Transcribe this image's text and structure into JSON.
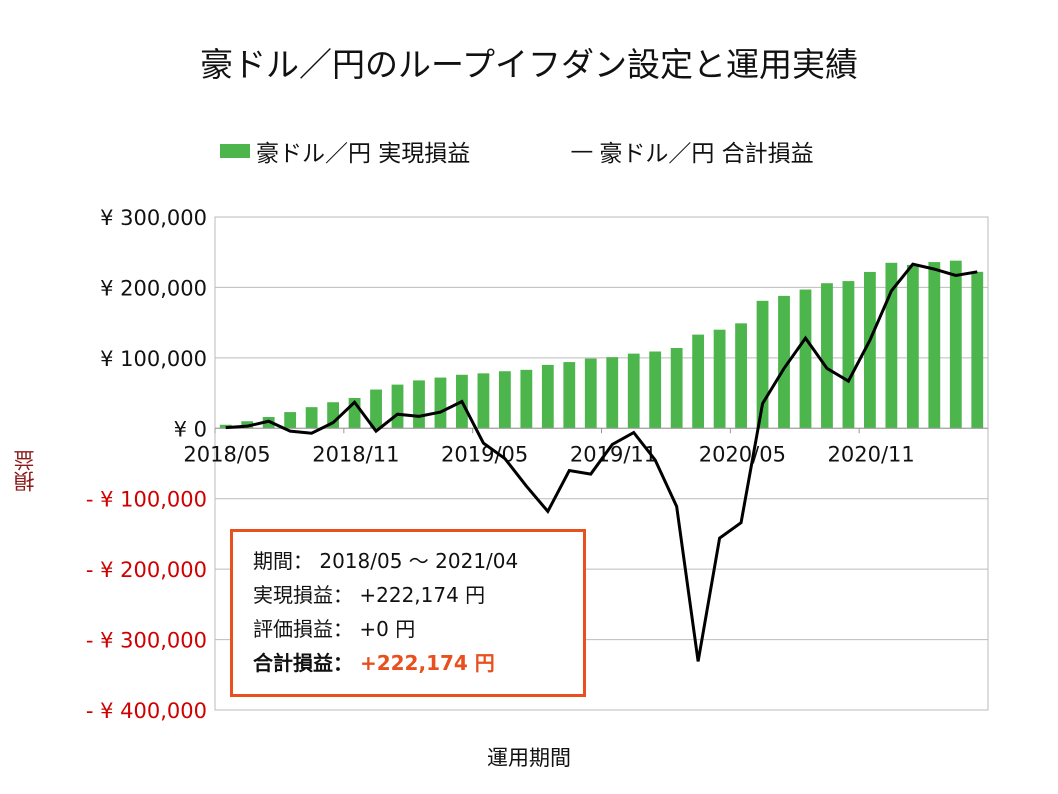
{
  "chart_data": {
    "type": "bar+line",
    "title": "豪ドル／円のループイフダン設定と運用実績",
    "xlabel": "運用期間",
    "ylabel": "損益",
    "ylim": [
      -400000,
      300000
    ],
    "yticks": [
      300000,
      200000,
      100000,
      0,
      -100000,
      -200000,
      -300000,
      -400000
    ],
    "ytick_labels": [
      "¥ 300,000",
      "¥ 200,000",
      "¥ 100,000",
      "¥ 0",
      "- ¥ 100,000",
      "- ¥ 200,000",
      "- ¥ 300,000",
      "- ¥ 400,000"
    ],
    "xtick_labels": [
      "2018/05",
      "2018/11",
      "2019/05",
      "2019/11",
      "2020/05",
      "2020/11"
    ],
    "grid": true,
    "legend": "top",
    "categories": [
      "2018/05",
      "2018/06",
      "2018/07",
      "2018/08",
      "2018/09",
      "2018/10",
      "2018/11",
      "2018/12",
      "2019/01",
      "2019/02",
      "2019/03",
      "2019/04",
      "2019/05",
      "2019/06",
      "2019/07",
      "2019/08",
      "2019/09",
      "2019/10",
      "2019/11",
      "2019/12",
      "2020/01",
      "2020/02",
      "2020/03",
      "2020/04",
      "2020/05",
      "2020/06",
      "2020/07",
      "2020/08",
      "2020/09",
      "2020/10",
      "2020/11",
      "2020/12",
      "2021/01",
      "2021/02",
      "2021/03",
      "2021/04"
    ],
    "series": [
      {
        "name": "豪ドル／円 実現損益",
        "type": "bar",
        "color": "#4cb54c",
        "values": [
          5000,
          10000,
          16000,
          23000,
          30000,
          37000,
          43000,
          55000,
          62000,
          68000,
          72000,
          76000,
          78000,
          81000,
          83000,
          90000,
          94000,
          99000,
          101000,
          106000,
          109000,
          114000,
          133000,
          140000,
          149000,
          181000,
          188000,
          197000,
          206000,
          209000,
          222000,
          235000,
          232000,
          236000,
          238000,
          222174
        ]
      },
      {
        "name": "豪ドル／円 合計損益",
        "type": "line",
        "color": "#000000",
        "values": [
          1000,
          3000,
          10000,
          -4000,
          -7000,
          8000,
          37000,
          -4000,
          20000,
          17000,
          23000,
          38000,
          -21000,
          -43000,
          -82000,
          -118000,
          -60000,
          -65000,
          -23000,
          -6000,
          -45000,
          -111000,
          -331000,
          -156000,
          -134000,
          35000,
          85000,
          128000,
          85000,
          67000,
          125000,
          195000,
          233000,
          226000,
          217000,
          222174
        ]
      }
    ],
    "colors": {
      "positive_tick": "#111111",
      "negative_tick": "#d00000",
      "accent": "#e8501e"
    }
  },
  "summary": {
    "period": "期間： 2018/05 ～ 2021/04",
    "realized": "実現損益： +222,174 円",
    "unrealized": "評価損益： +0 円",
    "total_label": "合計損益：",
    "total_value": "+222,174 円"
  },
  "legend_line_prefix": "—"
}
